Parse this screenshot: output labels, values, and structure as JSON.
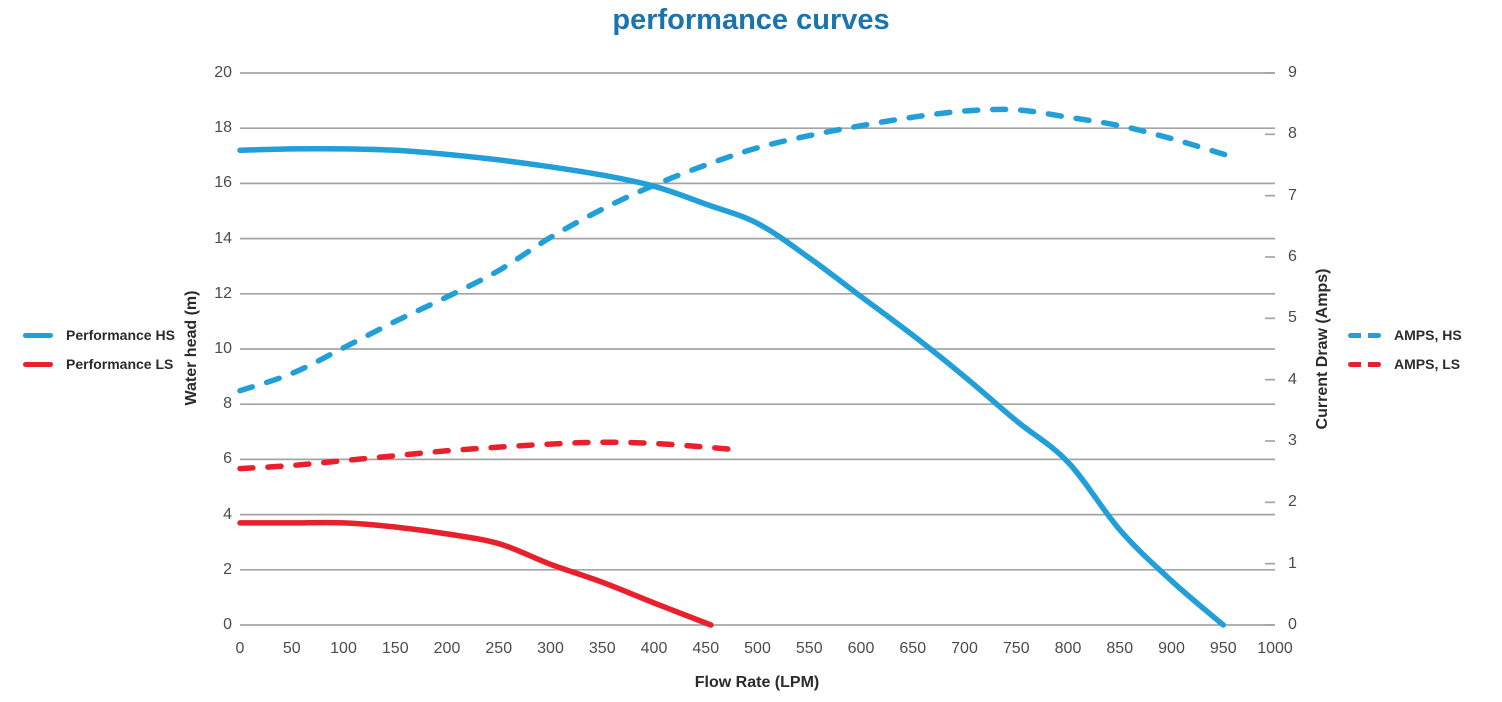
{
  "title": "performance curves",
  "colors": {
    "blue": "#219fd9",
    "red": "#e8202c",
    "title": "#1a74ae",
    "grid": "#a4a4a4",
    "axis_text": "#2d2a2b",
    "tick_text": "#4c4c4e"
  },
  "chart_data": {
    "type": "line",
    "title": "performance curves",
    "xlabel": "Flow Rate (LPM)",
    "ylabel_left": "Water head  (m)",
    "ylabel_right": "Current Draw (Amps)",
    "xlim": [
      0,
      1000
    ],
    "ylim_left": [
      0,
      20
    ],
    "ylim_right": [
      0,
      9
    ],
    "x_ticks": [
      0,
      50,
      100,
      150,
      200,
      250,
      300,
      350,
      400,
      450,
      500,
      550,
      600,
      650,
      700,
      750,
      800,
      850,
      900,
      950,
      1000
    ],
    "y_left_ticks": [
      0,
      2,
      4,
      6,
      8,
      10,
      12,
      14,
      16,
      18,
      20
    ],
    "y_right_ticks": [
      0,
      1,
      2,
      3,
      4,
      5,
      6,
      7,
      8,
      9
    ],
    "grid": "horizontal-only",
    "legend_left": [
      {
        "label": "Performance HS",
        "color": "blue",
        "style": "solid"
      },
      {
        "label": "Performance LS",
        "color": "red",
        "style": "solid"
      }
    ],
    "legend_right": [
      {
        "label": "AMPS, HS",
        "color": "blue",
        "style": "dashed"
      },
      {
        "label": "AMPS, LS",
        "color": "red",
        "style": "dashed"
      }
    ],
    "series": [
      {
        "name": "Performance HS",
        "axis": "left",
        "style": "solid",
        "color": "blue",
        "points": [
          [
            0,
            17.2
          ],
          [
            50,
            17.25
          ],
          [
            100,
            17.25
          ],
          [
            150,
            17.2
          ],
          [
            200,
            17.05
          ],
          [
            250,
            16.85
          ],
          [
            300,
            16.6
          ],
          [
            350,
            16.3
          ],
          [
            400,
            15.9
          ],
          [
            450,
            15.25
          ],
          [
            500,
            14.55
          ],
          [
            550,
            13.3
          ],
          [
            600,
            11.9
          ],
          [
            650,
            10.5
          ],
          [
            700,
            9.0
          ],
          [
            750,
            7.4
          ],
          [
            800,
            5.9
          ],
          [
            850,
            3.45
          ],
          [
            900,
            1.6
          ],
          [
            950,
            0
          ]
        ]
      },
      {
        "name": "Performance LS",
        "axis": "left",
        "style": "solid",
        "color": "red",
        "points": [
          [
            0,
            3.7
          ],
          [
            50,
            3.7
          ],
          [
            100,
            3.7
          ],
          [
            150,
            3.55
          ],
          [
            200,
            3.3
          ],
          [
            250,
            2.95
          ],
          [
            300,
            2.2
          ],
          [
            350,
            1.55
          ],
          [
            400,
            0.8
          ],
          [
            455,
            0
          ]
        ]
      },
      {
        "name": "AMPS, HS",
        "axis": "right",
        "style": "dashed",
        "color": "blue",
        "points": [
          [
            0,
            3.82
          ],
          [
            50,
            4.1
          ],
          [
            100,
            4.52
          ],
          [
            150,
            4.95
          ],
          [
            200,
            5.35
          ],
          [
            250,
            5.78
          ],
          [
            300,
            6.32
          ],
          [
            350,
            6.78
          ],
          [
            400,
            7.17
          ],
          [
            450,
            7.5
          ],
          [
            500,
            7.78
          ],
          [
            550,
            7.98
          ],
          [
            600,
            8.14
          ],
          [
            650,
            8.28
          ],
          [
            700,
            8.38
          ],
          [
            750,
            8.4
          ],
          [
            800,
            8.28
          ],
          [
            850,
            8.14
          ],
          [
            900,
            7.93
          ],
          [
            965,
            7.6
          ]
        ]
      },
      {
        "name": "AMPS, LS",
        "axis": "right",
        "style": "dashed",
        "color": "red",
        "points": [
          [
            0,
            2.55
          ],
          [
            50,
            2.6
          ],
          [
            100,
            2.68
          ],
          [
            150,
            2.76
          ],
          [
            200,
            2.84
          ],
          [
            250,
            2.9
          ],
          [
            300,
            2.95
          ],
          [
            350,
            2.98
          ],
          [
            400,
            2.96
          ],
          [
            450,
            2.9
          ],
          [
            478,
            2.86
          ]
        ]
      }
    ]
  }
}
